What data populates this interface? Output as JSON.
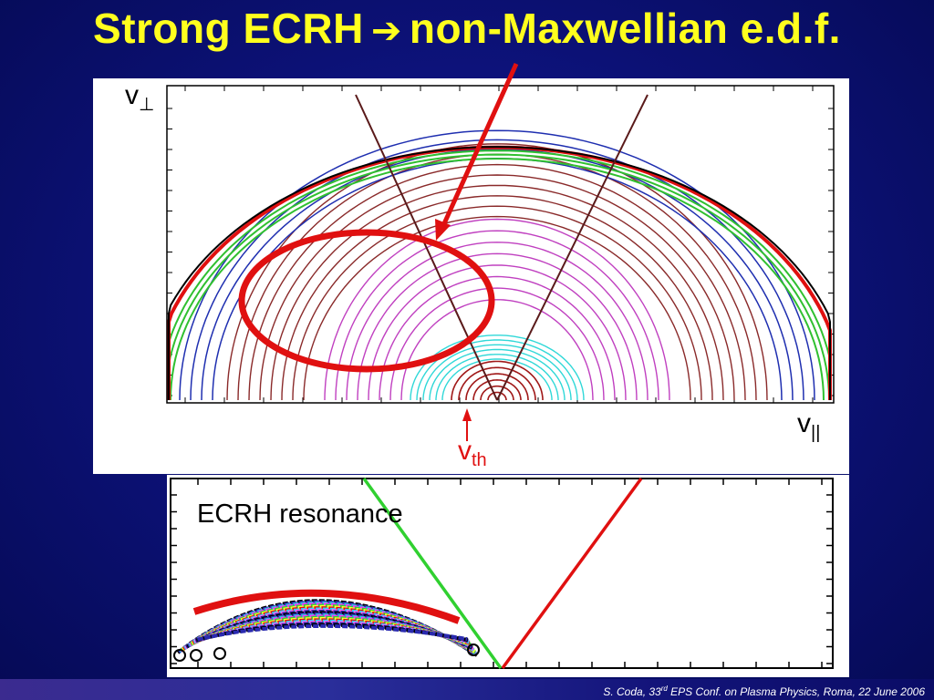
{
  "slide": {
    "title_part1": "Strong ECRH",
    "title_arrow": "➔",
    "title_part2": "non-Maxwellian e.d.f."
  },
  "top_plot": {
    "y_axis_symbol": "v",
    "y_axis_subscript": "⊥",
    "x_axis_symbol": "v",
    "x_axis_subscript": "||",
    "annotation_symbol": "v",
    "annotation_subscript": "th"
  },
  "bottom_plot": {
    "label": "ECRH resonance"
  },
  "footer": {
    "part1": "S. Coda, 33",
    "sup": "rd",
    "part2": " EPS Conf. on Plasma Physics, Roma, 22 June 2006"
  },
  "colors": {
    "title": "#ffff1e",
    "highlight": "#e01010",
    "background": "#0d127a"
  }
}
